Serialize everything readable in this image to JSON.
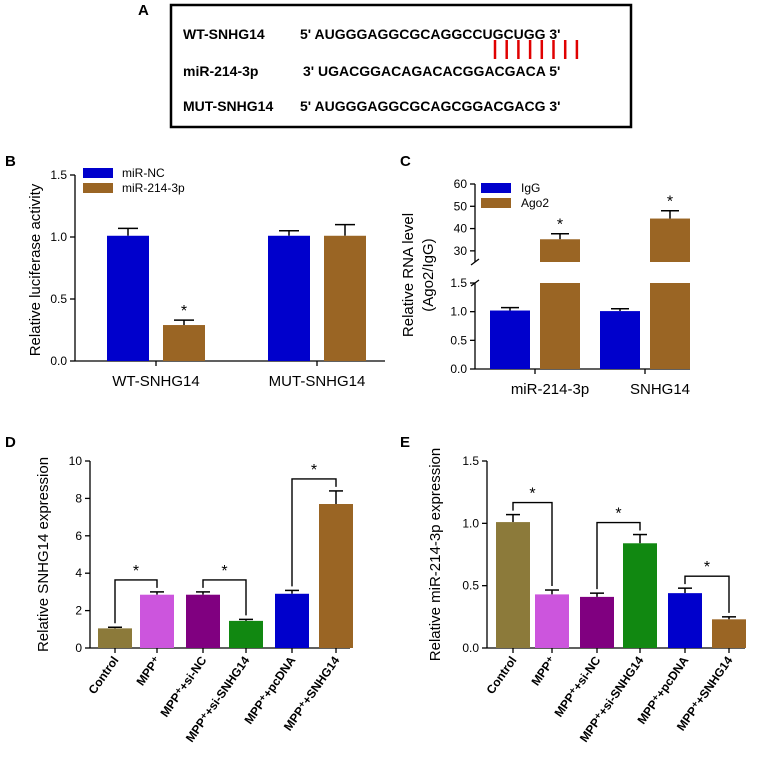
{
  "chart_data": [
    {
      "panel": "A",
      "type": "table",
      "rows": [
        {
          "name": "WT-SNHG14",
          "sequence": "5' AUGGGAGGCGCAGGCCUGCUGG 3'"
        },
        {
          "name": "miR-214-3p",
          "sequence": "3' UGACGGACAGACACGGACGACA 5'"
        },
        {
          "name": "MUT-SNHG14",
          "sequence": "5' AUGGGAGGCGCAGCGGACGACG 3'"
        }
      ],
      "pairing_count": 8
    },
    {
      "panel": "B",
      "type": "bar",
      "ylabel": "Relative luciferase activity",
      "ylim": [
        0,
        1.5
      ],
      "yticks": [
        "0.0",
        "0.5",
        "1.0",
        "1.5"
      ],
      "categories": [
        "WT-SNHG14",
        "MUT-SNHG14"
      ],
      "series": [
        {
          "name": "miR-NC",
          "color": "#0000cc",
          "values": [
            1.01,
            1.01
          ],
          "errors": [
            0.06,
            0.04
          ]
        },
        {
          "name": "miR-214-3p",
          "color": "#9a6524",
          "values": [
            0.29,
            1.01
          ],
          "errors": [
            0.04,
            0.09
          ]
        }
      ],
      "significance": [
        "*"
      ]
    },
    {
      "panel": "C",
      "type": "bar",
      "ylabel": "Relative RNA level",
      "ylabel2": "(Ago2/IgG)",
      "broken_axis": true,
      "ylim_lower": [
        0,
        1.5
      ],
      "ylim_upper": [
        25,
        60
      ],
      "yticks_lower": [
        "0.0",
        "0.5",
        "1.0",
        "1.5"
      ],
      "yticks_upper": [
        "30",
        "40",
        "50",
        "60"
      ],
      "categories": [
        "miR-214-3p",
        "SNHG14"
      ],
      "series": [
        {
          "name": "IgG",
          "color": "#0000cc",
          "values": [
            1.02,
            1.01
          ],
          "errors": [
            0.05,
            0.04
          ]
        },
        {
          "name": "Ago2",
          "color": "#9a6524",
          "values": [
            35.2,
            44.5
          ],
          "errors": [
            2.5,
            3.5
          ]
        }
      ],
      "significance": [
        "*",
        "*"
      ]
    },
    {
      "panel": "D",
      "type": "bar",
      "ylabel": "Relative SNHG14 expression",
      "ylim": [
        0,
        10
      ],
      "yticks": [
        "0",
        "2",
        "4",
        "6",
        "8",
        "10"
      ],
      "categories": [
        "Control",
        "MPP⁺",
        "MPP⁺+si-NC",
        "MPP⁺+si-SNHG14",
        "MPP⁺+pcDNA",
        "MPP⁺+SNHG14"
      ],
      "values": [
        1.05,
        2.85,
        2.85,
        1.45,
        2.9,
        7.7
      ],
      "errors": [
        0.06,
        0.15,
        0.15,
        0.08,
        0.18,
        0.7
      ],
      "colors": [
        "#8c7a3a",
        "#cc55dd",
        "#800080",
        "#118811",
        "#0000cc",
        "#9a6524"
      ],
      "significance": [
        "*",
        "*",
        "*"
      ]
    },
    {
      "panel": "E",
      "type": "bar",
      "ylabel": "Relative miR-214-3p expression",
      "ylim": [
        0,
        1.5
      ],
      "yticks": [
        "0.0",
        "0.5",
        "1.0",
        "1.5"
      ],
      "categories": [
        "Control",
        "MPP⁺",
        "MPP⁺+si-NC",
        "MPP⁺+si-SNHG14",
        "MPP⁺+pcDNA",
        "MPP⁺+SNHG14"
      ],
      "values": [
        1.01,
        0.43,
        0.41,
        0.84,
        0.44,
        0.23
      ],
      "errors": [
        0.06,
        0.035,
        0.03,
        0.07,
        0.04,
        0.02
      ],
      "colors": [
        "#8c7a3a",
        "#cc55dd",
        "#800080",
        "#118811",
        "#0000cc",
        "#9a6524"
      ],
      "significance": [
        "*",
        "*",
        "*"
      ]
    }
  ]
}
